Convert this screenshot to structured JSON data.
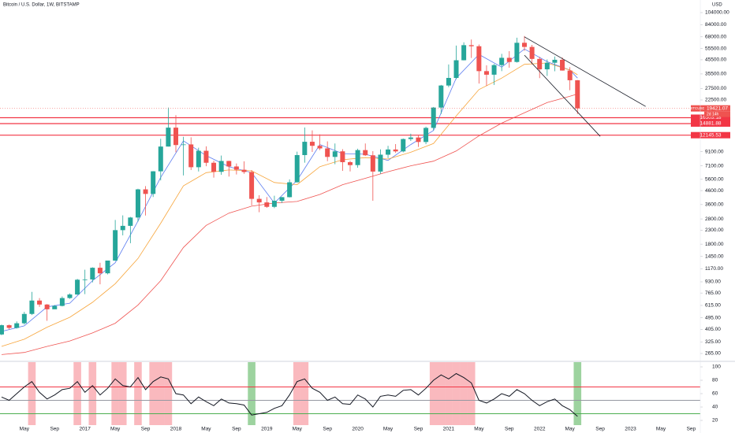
{
  "header": {
    "title": "Bitcoin / U.S. Dollar, 1W, BITSTAMP",
    "currency": "USD"
  },
  "chart_data": [
    {
      "type": "candlestick",
      "symbol": "BTCUSD",
      "countdown": "2d 14h",
      "log": true,
      "grid": false,
      "up_color": "#26a69a",
      "down_color": "#ef5350",
      "xlim": [
        "2016-02",
        "2023-10"
      ],
      "ylim": [
        244,
        129700
      ],
      "yticks": [
        {
          "value": 104000,
          "label": "104000.00"
        },
        {
          "value": 84000,
          "label": "84000.00"
        },
        {
          "value": 68000,
          "label": "68000.00"
        },
        {
          "value": 55500,
          "label": "55500.00"
        },
        {
          "value": 45500,
          "label": "45500.00"
        },
        {
          "value": 35500,
          "label": "35500.00"
        },
        {
          "value": 27500,
          "label": "27500.00"
        },
        {
          "value": 22500,
          "label": "22500.00"
        },
        {
          "value": 9100,
          "label": "9100.00"
        },
        {
          "value": 7100,
          "label": "7100.00"
        },
        {
          "value": 5600,
          "label": "5600.00"
        },
        {
          "value": 4600,
          "label": "4600.00"
        },
        {
          "value": 3600,
          "label": "3600.00"
        },
        {
          "value": 2800,
          "label": "2800.00"
        },
        {
          "value": 2300,
          "label": "2300.00"
        },
        {
          "value": 1800,
          "label": "1800.00"
        },
        {
          "value": 1450,
          "label": "1450.00"
        },
        {
          "value": 1170,
          "label": "1170.00"
        },
        {
          "value": 930,
          "label": "930.00"
        },
        {
          "value": 765,
          "label": "765.00"
        },
        {
          "value": 615,
          "label": "615.00"
        },
        {
          "value": 495,
          "label": "495.00"
        },
        {
          "value": 405,
          "label": "405.00"
        },
        {
          "value": 325,
          "label": "325.00"
        },
        {
          "value": 265,
          "label": "265.00"
        }
      ],
      "x": [
        "2016-02",
        "2016-03",
        "2016-04",
        "2016-05",
        "2016-06",
        "2016-07",
        "2016-08",
        "2016-09",
        "2016-10",
        "2016-11",
        "2016-12",
        "2017-01",
        "2017-02",
        "2017-03",
        "2017-04",
        "2017-05",
        "2017-06",
        "2017-07",
        "2017-08",
        "2017-09",
        "2017-10",
        "2017-11",
        "2017-12",
        "2018-01",
        "2018-02",
        "2018-03",
        "2018-04",
        "2018-05",
        "2018-06",
        "2018-07",
        "2018-08",
        "2018-09",
        "2018-10",
        "2018-11",
        "2018-12",
        "2019-01",
        "2019-02",
        "2019-03",
        "2019-04",
        "2019-05",
        "2019-06",
        "2019-07",
        "2019-08",
        "2019-09",
        "2019-10",
        "2019-11",
        "2019-12",
        "2020-01",
        "2020-02",
        "2020-03",
        "2020-04",
        "2020-05",
        "2020-06",
        "2020-07",
        "2020-08",
        "2020-09",
        "2020-10",
        "2020-11",
        "2020-12",
        "2021-01",
        "2021-02",
        "2021-03",
        "2021-04",
        "2021-05",
        "2021-06",
        "2021-07",
        "2021-08",
        "2021-09",
        "2021-10",
        "2021-11",
        "2021-12",
        "2022-01",
        "2022-02",
        "2022-03",
        "2022-04",
        "2022-05",
        "2022-06"
      ],
      "open": [
        370,
        435,
        415,
        450,
        530,
        670,
        625,
        575,
        610,
        700,
        745,
        965,
        970,
        1190,
        1080,
        1350,
        2300,
        2480,
        2870,
        4700,
        4340,
        6450,
        9950,
        13860,
        10220,
        10330,
        6930,
        9240,
        7490,
        6390,
        7730,
        7020,
        6630,
        6370,
        3980,
        3740,
        3460,
        3850,
        4100,
        5320,
        8570,
        10820,
        10080,
        9630,
        8300,
        9150,
        7570,
        7190,
        9350,
        8540,
        6420,
        8630,
        9450,
        9140,
        11350,
        11660,
        10780,
        13800,
        19700,
        28990,
        33110,
        45140,
        58800,
        57700,
        37300,
        35040,
        41460,
        47100,
        43800,
        61300,
        57000,
        46200,
        38500,
        43200,
        45500,
        37700,
        31800
      ],
      "high": [
        440,
        440,
        465,
        550,
        780,
        700,
        630,
        620,
        720,
        760,
        980,
        1150,
        1200,
        1300,
        1350,
        2750,
        2980,
        2900,
        4750,
        4980,
        6470,
        11400,
        19700,
        17250,
        11800,
        11700,
        9750,
        9990,
        7760,
        8500,
        7760,
        7400,
        7680,
        6590,
        4240,
        4110,
        4200,
        4120,
        5600,
        9100,
        13900,
        13200,
        12330,
        10900,
        10500,
        9500,
        7750,
        9580,
        10500,
        9180,
        9470,
        10070,
        10390,
        11460,
        12470,
        12080,
        14100,
        19900,
        29300,
        41950,
        58350,
        61800,
        64900,
        59500,
        41300,
        42300,
        50500,
        52900,
        67000,
        69000,
        59100,
        47900,
        45800,
        48200,
        47400,
        40000,
        31900
      ],
      "low": [
        365,
        405,
        410,
        440,
        520,
        600,
        470,
        595,
        605,
        690,
        740,
        750,
        920,
        890,
        1060,
        1340,
        2100,
        1830,
        2670,
        2970,
        4110,
        5500,
        9950,
        9000,
        6000,
        6600,
        6430,
        7050,
        5770,
        6070,
        5880,
        6100,
        6170,
        3550,
        3150,
        3400,
        3380,
        3700,
        4080,
        5300,
        7500,
        9050,
        9350,
        7700,
        7300,
        6500,
        6430,
        6870,
        8450,
        3850,
        6170,
        8120,
        8910,
        8990,
        10980,
        9880,
        10370,
        13200,
        17600,
        28130,
        32400,
        45000,
        47000,
        30000,
        28800,
        29300,
        37300,
        39600,
        43300,
        53300,
        42000,
        33000,
        34300,
        37200,
        37600,
        26700,
        17600
      ],
      "close": [
        435,
        415,
        450,
        530,
        670,
        625,
        575,
        610,
        700,
        745,
        965,
        970,
        1190,
        1080,
        1350,
        2300,
        2480,
        2870,
        4700,
        4340,
        6450,
        9950,
        13860,
        10220,
        10330,
        6930,
        9240,
        7490,
        6390,
        7730,
        7020,
        6630,
        6370,
        3980,
        3740,
        3460,
        3850,
        4100,
        5320,
        8570,
        10820,
        10080,
        9630,
        8300,
        9150,
        7570,
        7190,
        9350,
        8540,
        6420,
        8630,
        9450,
        9140,
        11350,
        11660,
        10780,
        13800,
        19700,
        28990,
        33110,
        45140,
        58800,
        57700,
        37300,
        35040,
        41460,
        47100,
        43800,
        61300,
        57000,
        46200,
        38500,
        43200,
        45500,
        37700,
        31800,
        19421.07
      ],
      "overlays": [
        {
          "color": "#5b7cf0",
          "x": [
            "2016-02",
            "2016-05",
            "2016-08",
            "2016-11",
            "2017-02",
            "2017-05",
            "2017-08",
            "2017-11",
            "2018-02",
            "2018-05",
            "2018-08",
            "2018-11",
            "2019-02",
            "2019-05",
            "2019-08",
            "2019-11",
            "2020-02",
            "2020-05",
            "2020-08",
            "2020-11",
            "2021-02",
            "2021-05",
            "2021-08",
            "2021-11",
            "2022-02",
            "2022-05",
            "2022-06"
          ],
          "values": [
            390,
            430,
            600,
            640,
            950,
            1300,
            2700,
            5800,
            11000,
            8500,
            7000,
            6300,
            3700,
            5500,
            10300,
            8800,
            8700,
            7800,
            10300,
            13200,
            33000,
            50000,
            40000,
            55000,
            44000,
            38000,
            33000
          ]
        },
        {
          "color": "#f7a53b",
          "x": [
            "2016-02",
            "2016-05",
            "2016-08",
            "2016-11",
            "2017-02",
            "2017-05",
            "2017-08",
            "2017-11",
            "2018-02",
            "2018-05",
            "2018-08",
            "2018-11",
            "2019-02",
            "2019-05",
            "2019-08",
            "2019-11",
            "2020-02",
            "2020-05",
            "2020-08",
            "2020-11",
            "2021-02",
            "2021-05",
            "2021-08",
            "2021-11",
            "2022-02",
            "2022-05",
            "2022-06"
          ],
          "values": [
            300,
            340,
            420,
            500,
            650,
            900,
            1400,
            2600,
            5000,
            6300,
            6600,
            6500,
            5300,
            5100,
            7000,
            7900,
            8200,
            8000,
            9000,
            10500,
            17000,
            27000,
            33000,
            42000,
            43000,
            38000,
            35000
          ]
        },
        {
          "color": "#ef5350",
          "x": [
            "2016-02",
            "2016-05",
            "2016-08",
            "2016-11",
            "2017-02",
            "2017-05",
            "2017-08",
            "2017-11",
            "2018-02",
            "2018-05",
            "2018-08",
            "2018-11",
            "2019-02",
            "2019-05",
            "2019-08",
            "2019-11",
            "2020-02",
            "2020-05",
            "2020-08",
            "2020-11",
            "2021-02",
            "2021-05",
            "2021-08",
            "2021-11",
            "2022-02",
            "2022-05",
            "2022-06"
          ],
          "values": [
            260,
            270,
            300,
            330,
            380,
            450,
            620,
            950,
            1700,
            2500,
            3100,
            3500,
            3700,
            3800,
            4300,
            5100,
            5700,
            6400,
            7100,
            7700,
            9200,
            12000,
            15000,
            18000,
            21500,
            24000,
            25000
          ]
        }
      ],
      "levels": [
        16503.18,
        14881.88,
        12145.53
      ],
      "level_color": "#f23645",
      "trendlines": [
        {
          "x": [
            "2021-11",
            "2023-03"
          ],
          "values": [
            68000,
            20100
          ]
        },
        {
          "x": [
            "2021-11",
            "2022-09"
          ],
          "values": [
            49300,
            11900
          ]
        }
      ],
      "trendline_color": "#131722"
    },
    {
      "type": "line",
      "xlim": [
        "2016-02",
        "2023-10"
      ],
      "ylim": [
        20,
        100
      ],
      "yticks": [
        100,
        80,
        60,
        40,
        20
      ],
      "x": [
        "2016-02",
        "2016-03",
        "2016-04",
        "2016-05",
        "2016-06",
        "2016-07",
        "2016-08",
        "2016-09",
        "2016-10",
        "2016-11",
        "2016-12",
        "2017-01",
        "2017-02",
        "2017-03",
        "2017-04",
        "2017-05",
        "2017-06",
        "2017-07",
        "2017-08",
        "2017-09",
        "2017-10",
        "2017-11",
        "2017-12",
        "2018-01",
        "2018-02",
        "2018-03",
        "2018-04",
        "2018-05",
        "2018-06",
        "2018-07",
        "2018-08",
        "2018-09",
        "2018-10",
        "2018-11",
        "2018-12",
        "2019-01",
        "2019-02",
        "2019-03",
        "2019-04",
        "2019-05",
        "2019-06",
        "2019-07",
        "2019-08",
        "2019-09",
        "2019-10",
        "2019-11",
        "2019-12",
        "2020-01",
        "2020-02",
        "2020-03",
        "2020-04",
        "2020-05",
        "2020-06",
        "2020-07",
        "2020-08",
        "2020-09",
        "2020-10",
        "2020-11",
        "2020-12",
        "2021-01",
        "2021-02",
        "2021-03",
        "2021-04",
        "2021-05",
        "2021-06",
        "2021-07",
        "2021-08",
        "2021-09",
        "2021-10",
        "2021-11",
        "2021-12",
        "2022-01",
        "2022-02",
        "2022-03",
        "2022-04",
        "2022-05",
        "2022-06"
      ],
      "series": [
        {
          "color": "#131722",
          "values": [
            55,
            50,
            60,
            70,
            78,
            62,
            52,
            58,
            66,
            68,
            78,
            62,
            72,
            58,
            68,
            82,
            72,
            70,
            84,
            66,
            78,
            85,
            82,
            60,
            58,
            45,
            55,
            48,
            42,
            52,
            46,
            45,
            43,
            28,
            30,
            32,
            38,
            42,
            58,
            78,
            82,
            68,
            62,
            50,
            55,
            45,
            44,
            58,
            52,
            40,
            56,
            58,
            56,
            65,
            66,
            58,
            68,
            80,
            88,
            82,
            90,
            84,
            76,
            50,
            46,
            52,
            60,
            56,
            66,
            60,
            50,
            42,
            48,
            52,
            42,
            36,
            26
          ]
        }
      ],
      "levels": [
        70,
        50,
        30
      ],
      "level_colors": [
        "#f23645",
        "#9598a1",
        "#4caf50"
      ],
      "zone_colors": [
        "rgba(242,54,69,0.35)",
        "rgba(76,175,80,0.55)"
      ],
      "xticks": [
        {
          "value": "2016-05",
          "label": "May"
        },
        {
          "value": "2016-09",
          "label": "Sep"
        },
        {
          "value": "2017-01",
          "label": "2017"
        },
        {
          "value": "2017-05",
          "label": "May"
        },
        {
          "value": "2017-09",
          "label": "Sep"
        },
        {
          "value": "2018-01",
          "label": "2018"
        },
        {
          "value": "2018-05",
          "label": "May"
        },
        {
          "value": "2018-09",
          "label": "Sep"
        },
        {
          "value": "2019-01",
          "label": "2019"
        },
        {
          "value": "2019-05",
          "label": "May"
        },
        {
          "value": "2019-09",
          "label": "Sep"
        },
        {
          "value": "2020-01",
          "label": "2020"
        },
        {
          "value": "2020-05",
          "label": "May"
        },
        {
          "value": "2020-09",
          "label": "Sep"
        },
        {
          "value": "2021-01",
          "label": "2021"
        },
        {
          "value": "2021-05",
          "label": "May"
        },
        {
          "value": "2021-09",
          "label": "Sep"
        },
        {
          "value": "2022-01",
          "label": "2022"
        },
        {
          "value": "2022-05",
          "label": "May"
        },
        {
          "value": "2022-09",
          "label": "Sep"
        },
        {
          "value": "2023-01",
          "label": "2023"
        },
        {
          "value": "2023-05",
          "label": "May"
        },
        {
          "value": "2023-09",
          "label": "Sep"
        }
      ]
    }
  ]
}
